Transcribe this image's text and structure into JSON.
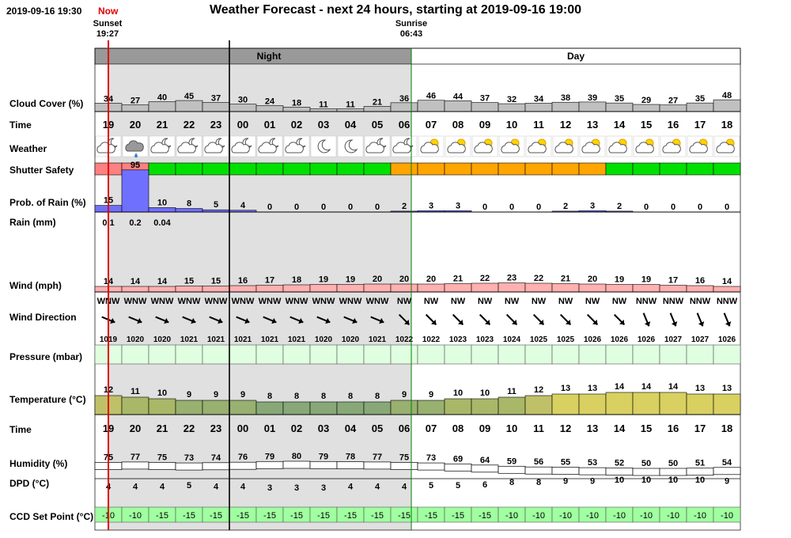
{
  "header": {
    "current_datetime": "2019-09-16 19:30",
    "now_label": "Now",
    "title": "Weather Forecast - next 24 hours, starting at 2019-09-16 19:00",
    "sunset_label": "Sunset",
    "sunset_time": "19:27",
    "sunrise_label": "Sunrise",
    "sunrise_time": "06:43",
    "night_label": "Night",
    "day_label": "Day"
  },
  "row_labels": {
    "cloud": "Cloud Cover (%)",
    "time": "Time",
    "weather": "Weather",
    "shutter": "Shutter Safety",
    "rain_prob": "Prob. of Rain (%)",
    "rain_mm": "Rain (mm)",
    "wind": "Wind (mph)",
    "wind_dir": "Wind Direction",
    "pressure": "Pressure (mbar)",
    "temperature": "Temperature (°C)",
    "time2": "Time",
    "humidity": "Humidity (%)",
    "dpd": "DPD (°C)",
    "ccd": "CCD Set Point (°C)"
  },
  "colors": {
    "night_shade": "#e0e0e0",
    "night_bar": "#999999",
    "cloud_bar": "#c0c0c0",
    "safe": "#00e000",
    "unsafe": "#ff8080",
    "caution": "#ffa500",
    "rain_bar": "#7070ff",
    "wind_bar": "#ffb0b0",
    "pressure_bar": "#e0ffe0",
    "ccd_bar": "#a0ffa0",
    "now_line": "#e00000",
    "sun_border": "#008000"
  },
  "forecast": {
    "hours": [
      "19",
      "20",
      "21",
      "22",
      "23",
      "00",
      "01",
      "02",
      "03",
      "04",
      "05",
      "06",
      "07",
      "08",
      "09",
      "10",
      "11",
      "12",
      "13",
      "14",
      "15",
      "16",
      "17",
      "18"
    ],
    "cloud_cover": [
      34,
      27,
      40,
      45,
      37,
      30,
      24,
      18,
      11,
      11,
      21,
      36,
      46,
      44,
      37,
      32,
      34,
      38,
      39,
      35,
      29,
      27,
      35,
      48
    ],
    "weather_icons": [
      "partly-cloudy-night",
      "rain-cloud",
      "partly-cloudy-night",
      "partly-cloudy-night",
      "partly-cloudy-night",
      "partly-cloudy-night",
      "partly-cloudy-night",
      "partly-cloudy-night",
      "moon",
      "moon",
      "partly-cloudy-night",
      "partly-cloudy-night",
      "partly-sunny",
      "partly-sunny",
      "partly-sunny",
      "partly-sunny",
      "partly-sunny",
      "partly-sunny",
      "partly-sunny",
      "partly-sunny",
      "partly-sunny",
      "partly-sunny",
      "partly-sunny",
      "partly-sunny"
    ],
    "shutter_safety": [
      "unsafe",
      "unsafe",
      "safe",
      "safe",
      "safe",
      "safe",
      "safe",
      "safe",
      "safe",
      "safe",
      "safe",
      "caution",
      "caution",
      "caution",
      "caution",
      "caution",
      "caution",
      "caution",
      "caution",
      "safe",
      "safe",
      "safe",
      "safe",
      "safe"
    ],
    "rain_probability": [
      15,
      95,
      10,
      8,
      5,
      4,
      0,
      0,
      0,
      0,
      0,
      2,
      3,
      3,
      0,
      0,
      0,
      2,
      3,
      2,
      0,
      0,
      0,
      0
    ],
    "rain_mm": [
      "0.1",
      "0.2",
      "0.04",
      "",
      "",
      "",
      "",
      "",
      "",
      "",
      "",
      "",
      "",
      "",
      "",
      "",
      "",
      "",
      "",
      "",
      "",
      "",
      "",
      ""
    ],
    "wind_speed": [
      14,
      14,
      14,
      15,
      15,
      16,
      17,
      18,
      19,
      19,
      20,
      20,
      20,
      21,
      22,
      23,
      22,
      21,
      20,
      19,
      19,
      17,
      16,
      14
    ],
    "wind_direction": [
      "WNW",
      "WNW",
      "WNW",
      "WNW",
      "WNW",
      "WNW",
      "WNW",
      "WNW",
      "WNW",
      "WNW",
      "WNW",
      "NW",
      "NW",
      "NW",
      "NW",
      "NW",
      "NW",
      "NW",
      "NW",
      "NW",
      "NNW",
      "NNW",
      "NNW",
      "NNW"
    ],
    "pressure": [
      1019,
      1020,
      1020,
      1021,
      1021,
      1021,
      1021,
      1021,
      1020,
      1020,
      1021,
      1022,
      1022,
      1023,
      1023,
      1024,
      1025,
      1025,
      1026,
      1026,
      1026,
      1027,
      1027,
      1026
    ],
    "temperature": [
      12,
      11,
      10,
      9,
      9,
      9,
      8,
      8,
      8,
      8,
      8,
      9,
      9,
      10,
      10,
      11,
      12,
      13,
      13,
      14,
      14,
      14,
      13,
      13
    ],
    "humidity": [
      75,
      77,
      75,
      73,
      74,
      76,
      79,
      80,
      79,
      78,
      77,
      75,
      73,
      69,
      64,
      59,
      56,
      55,
      53,
      52,
      50,
      50,
      51,
      54
    ],
    "dpd": [
      4,
      4,
      4,
      5,
      4,
      4,
      3,
      3,
      3,
      4,
      4,
      4,
      5,
      5,
      6,
      8,
      8,
      9,
      9,
      10,
      10,
      10,
      10,
      9
    ],
    "ccd_set_point": [
      -10,
      -10,
      -15,
      -15,
      -15,
      -15,
      -15,
      -15,
      -15,
      -15,
      -15,
      -15,
      -15,
      -15,
      -15,
      -10,
      -10,
      -10,
      -10,
      -10,
      -10,
      -10,
      -10,
      -10
    ]
  }
}
